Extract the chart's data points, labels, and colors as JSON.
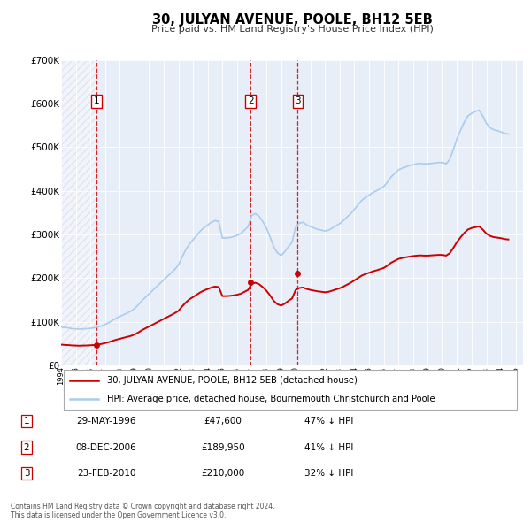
{
  "title": "30, JULYAN AVENUE, POOLE, BH12 5EB",
  "subtitle": "Price paid vs. HM Land Registry's House Price Index (HPI)",
  "xlim": [
    1994.0,
    2025.5
  ],
  "ylim": [
    0,
    700000
  ],
  "yticks": [
    0,
    100000,
    200000,
    300000,
    400000,
    500000,
    600000,
    700000
  ],
  "ytick_labels": [
    "£0",
    "£100K",
    "£200K",
    "£300K",
    "£400K",
    "£500K",
    "£600K",
    "£700K"
  ],
  "sale_color": "#cc0000",
  "hpi_color": "#aaccee",
  "sale_points": [
    {
      "year": 1996.41,
      "value": 47600,
      "label": "1"
    },
    {
      "year": 2006.93,
      "value": 189950,
      "label": "2"
    },
    {
      "year": 2010.14,
      "value": 210000,
      "label": "3"
    }
  ],
  "vline_years": [
    1996.41,
    2006.93,
    2010.14
  ],
  "legend_sale_label": "30, JULYAN AVENUE, POOLE, BH12 5EB (detached house)",
  "legend_hpi_label": "HPI: Average price, detached house, Bournemouth Christchurch and Poole",
  "table_rows": [
    {
      "num": "1",
      "date": "29-MAY-1996",
      "price": "£47,600",
      "hpi": "47% ↓ HPI"
    },
    {
      "num": "2",
      "date": "08-DEC-2006",
      "price": "£189,950",
      "hpi": "41% ↓ HPI"
    },
    {
      "num": "3",
      "date": "23-FEB-2010",
      "price": "£210,000",
      "hpi": "32% ↓ HPI"
    }
  ],
  "footnote": "Contains HM Land Registry data © Crown copyright and database right 2024.\nThis data is licensed under the Open Government Licence v3.0.",
  "hpi_data": {
    "years": [
      1994.0,
      1994.25,
      1994.5,
      1994.75,
      1995.0,
      1995.25,
      1995.5,
      1995.75,
      1996.0,
      1996.25,
      1996.5,
      1996.75,
      1997.0,
      1997.25,
      1997.5,
      1997.75,
      1998.0,
      1998.25,
      1998.5,
      1998.75,
      1999.0,
      1999.25,
      1999.5,
      1999.75,
      2000.0,
      2000.25,
      2000.5,
      2000.75,
      2001.0,
      2001.25,
      2001.5,
      2001.75,
      2002.0,
      2002.25,
      2002.5,
      2002.75,
      2003.0,
      2003.25,
      2003.5,
      2003.75,
      2004.0,
      2004.25,
      2004.5,
      2004.75,
      2005.0,
      2005.25,
      2005.5,
      2005.75,
      2006.0,
      2006.25,
      2006.5,
      2006.75,
      2007.0,
      2007.25,
      2007.5,
      2007.75,
      2008.0,
      2008.25,
      2008.5,
      2008.75,
      2009.0,
      2009.25,
      2009.5,
      2009.75,
      2010.0,
      2010.25,
      2010.5,
      2010.75,
      2011.0,
      2011.25,
      2011.5,
      2011.75,
      2012.0,
      2012.25,
      2012.5,
      2012.75,
      2013.0,
      2013.25,
      2013.5,
      2013.75,
      2014.0,
      2014.25,
      2014.5,
      2014.75,
      2015.0,
      2015.25,
      2015.5,
      2015.75,
      2016.0,
      2016.25,
      2016.5,
      2016.75,
      2017.0,
      2017.25,
      2017.5,
      2017.75,
      2018.0,
      2018.25,
      2018.5,
      2018.75,
      2019.0,
      2019.25,
      2019.5,
      2019.75,
      2020.0,
      2020.25,
      2020.5,
      2020.75,
      2021.0,
      2021.25,
      2021.5,
      2021.75,
      2022.0,
      2022.25,
      2022.5,
      2022.75,
      2023.0,
      2023.25,
      2023.5,
      2023.75,
      2024.0,
      2024.25,
      2024.5
    ],
    "values": [
      88000,
      87000,
      86000,
      84000,
      84000,
      83000,
      84000,
      84000,
      85000,
      86000,
      88000,
      90000,
      94000,
      98000,
      103000,
      108000,
      112000,
      116000,
      120000,
      124000,
      130000,
      138000,
      148000,
      156000,
      164000,
      172000,
      180000,
      188000,
      196000,
      204000,
      212000,
      220000,
      230000,
      248000,
      265000,
      278000,
      288000,
      298000,
      308000,
      316000,
      322000,
      328000,
      332000,
      330000,
      292000,
      292000,
      293000,
      295000,
      298000,
      302000,
      310000,
      318000,
      344000,
      348000,
      342000,
      330000,
      315000,
      295000,
      272000,
      258000,
      252000,
      260000,
      272000,
      282000,
      318000,
      326000,
      328000,
      322000,
      318000,
      315000,
      312000,
      310000,
      308000,
      310000,
      315000,
      320000,
      325000,
      332000,
      340000,
      348000,
      358000,
      368000,
      378000,
      385000,
      390000,
      396000,
      400000,
      405000,
      410000,
      420000,
      432000,
      440000,
      448000,
      452000,
      455000,
      458000,
      460000,
      462000,
      463000,
      462000,
      462000,
      463000,
      464000,
      465000,
      465000,
      462000,
      472000,
      495000,
      520000,
      540000,
      558000,
      572000,
      578000,
      582000,
      585000,
      572000,
      555000,
      545000,
      540000,
      538000,
      535000,
      532000,
      530000
    ]
  },
  "sale_hpi_data": {
    "years": [
      1994.0,
      1994.25,
      1994.5,
      1994.75,
      1995.0,
      1995.25,
      1995.5,
      1995.75,
      1996.0,
      1996.25,
      1996.5,
      1996.75,
      1997.0,
      1997.25,
      1997.5,
      1997.75,
      1998.0,
      1998.25,
      1998.5,
      1998.75,
      1999.0,
      1999.25,
      1999.5,
      1999.75,
      2000.0,
      2000.25,
      2000.5,
      2000.75,
      2001.0,
      2001.25,
      2001.5,
      2001.75,
      2002.0,
      2002.25,
      2002.5,
      2002.75,
      2003.0,
      2003.25,
      2003.5,
      2003.75,
      2004.0,
      2004.25,
      2004.5,
      2004.75,
      2005.0,
      2005.25,
      2005.5,
      2005.75,
      2006.0,
      2006.25,
      2006.5,
      2006.75,
      2007.0,
      2007.25,
      2007.5,
      2007.75,
      2008.0,
      2008.25,
      2008.5,
      2008.75,
      2009.0,
      2009.25,
      2009.5,
      2009.75,
      2010.0,
      2010.25,
      2010.5,
      2010.75,
      2011.0,
      2011.25,
      2011.5,
      2011.75,
      2012.0,
      2012.25,
      2012.5,
      2012.75,
      2013.0,
      2013.25,
      2013.5,
      2013.75,
      2014.0,
      2014.25,
      2014.5,
      2014.75,
      2015.0,
      2015.25,
      2015.5,
      2015.75,
      2016.0,
      2016.25,
      2016.5,
      2016.75,
      2017.0,
      2017.25,
      2017.5,
      2017.75,
      2018.0,
      2018.25,
      2018.5,
      2018.75,
      2019.0,
      2019.25,
      2019.5,
      2019.75,
      2020.0,
      2020.25,
      2020.5,
      2020.75,
      2021.0,
      2021.25,
      2021.5,
      2021.75,
      2022.0,
      2022.25,
      2022.5,
      2022.75,
      2023.0,
      2023.25,
      2023.5,
      2023.75,
      2024.0,
      2024.25,
      2024.5
    ],
    "values": [
      47600,
      47000,
      46500,
      45800,
      45400,
      45100,
      45400,
      45600,
      46100,
      46700,
      47900,
      49100,
      51100,
      53300,
      56100,
      58800,
      60900,
      63200,
      65300,
      67500,
      70700,
      75100,
      80500,
      84900,
      89200,
      93500,
      97900,
      102200,
      106600,
      110900,
      115300,
      119700,
      125100,
      134900,
      144200,
      151500,
      156700,
      162200,
      167600,
      171900,
      175200,
      178500,
      180700,
      179600,
      158900,
      158900,
      159400,
      160500,
      162100,
      164300,
      168600,
      173000,
      187200,
      189400,
      186100,
      179600,
      171400,
      160600,
      148000,
      140400,
      137100,
      141500,
      148000,
      153500,
      173100,
      177500,
      178600,
      175300,
      173100,
      171400,
      169800,
      168800,
      167700,
      168800,
      171500,
      174300,
      177000,
      180600,
      185100,
      189500,
      194900,
      200400,
      205800,
      209500,
      212300,
      215600,
      217800,
      220600,
      223300,
      228700,
      235300,
      239600,
      244000,
      246200,
      247800,
      249400,
      250600,
      251600,
      252200,
      251600,
      251600,
      252200,
      252800,
      253300,
      253300,
      251600,
      257000,
      269500,
      283100,
      294000,
      303900,
      311600,
      314900,
      316900,
      318900,
      311500,
      302100,
      296700,
      294000,
      292900,
      291500,
      289600,
      288600
    ]
  },
  "plot_bg_color": "#e8eef8",
  "hatch_color": "#c8d0dc"
}
